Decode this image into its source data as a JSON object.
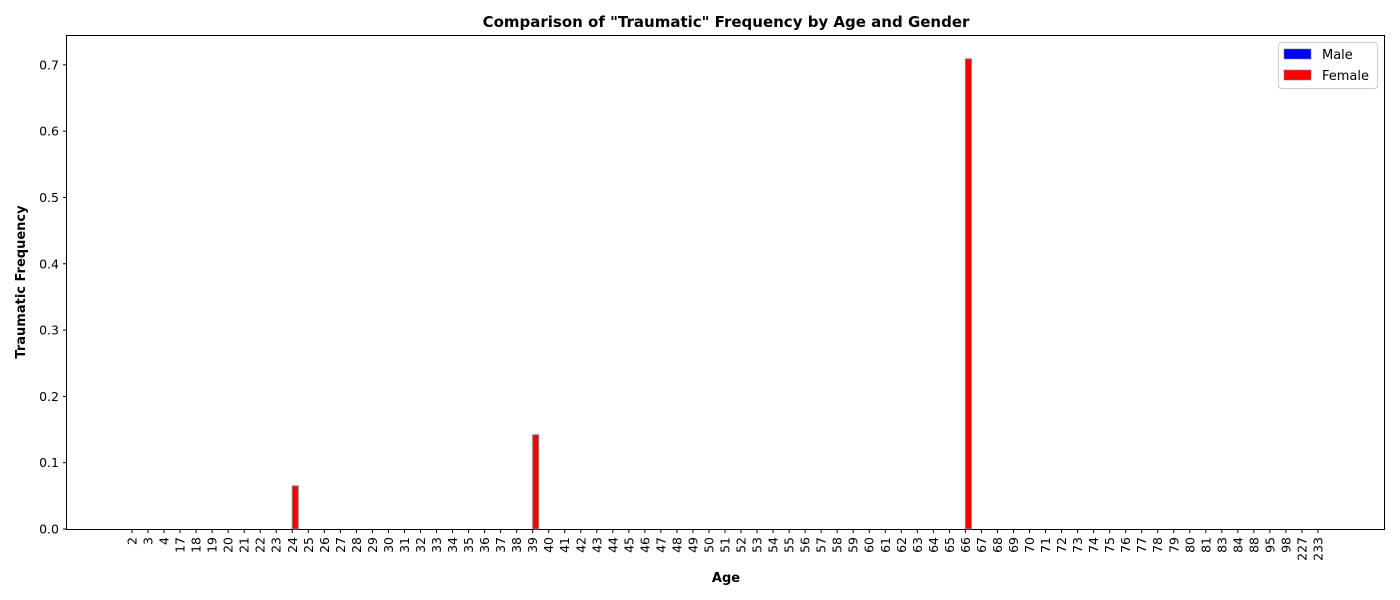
{
  "chart_data": {
    "type": "bar",
    "title": "Comparison of \"Traumatic\" Frequency by Age and Gender",
    "xlabel": "Age",
    "ylabel": "Traumatic Frequency",
    "ylim": [
      0,
      0.745
    ],
    "yticks": [
      "0.0",
      "0.1",
      "0.2",
      "0.3",
      "0.4",
      "0.5",
      "0.6",
      "0.7"
    ],
    "categories": [
      "2",
      "3",
      "4",
      "17",
      "18",
      "19",
      "20",
      "21",
      "22",
      "23",
      "24",
      "25",
      "26",
      "27",
      "28",
      "29",
      "30",
      "31",
      "32",
      "33",
      "34",
      "35",
      "36",
      "37",
      "38",
      "39",
      "40",
      "41",
      "42",
      "43",
      "44",
      "45",
      "46",
      "47",
      "48",
      "49",
      "50",
      "51",
      "52",
      "53",
      "54",
      "55",
      "56",
      "57",
      "58",
      "59",
      "60",
      "61",
      "62",
      "63",
      "64",
      "65",
      "66",
      "67",
      "68",
      "69",
      "70",
      "71",
      "72",
      "73",
      "74",
      "75",
      "76",
      "77",
      "78",
      "79",
      "80",
      "81",
      "83",
      "84",
      "88",
      "95",
      "98",
      "227",
      "233"
    ],
    "series": [
      {
        "name": "Male",
        "color": "#0000ff",
        "values": [
          0,
          0,
          0,
          0,
          0,
          0,
          0,
          0,
          0,
          0,
          0,
          0,
          0,
          0,
          0,
          0,
          0,
          0,
          0,
          0,
          0,
          0,
          0,
          0,
          0,
          0,
          0,
          0,
          0,
          0,
          0,
          0,
          0,
          0,
          0,
          0,
          0,
          0,
          0,
          0,
          0,
          0,
          0,
          0,
          0,
          0,
          0,
          0,
          0,
          0,
          0,
          0,
          0,
          0,
          0,
          0,
          0,
          0,
          0,
          0,
          0,
          0,
          0,
          0,
          0,
          0,
          0,
          0,
          0,
          0,
          0,
          0,
          0,
          0,
          0
        ]
      },
      {
        "name": "Female",
        "color": "#ff0000",
        "values": [
          0,
          0,
          0,
          0,
          0,
          0,
          0,
          0,
          0,
          0,
          0.065,
          0,
          0,
          0,
          0,
          0,
          0,
          0,
          0,
          0,
          0,
          0,
          0,
          0,
          0,
          0.142,
          0,
          0,
          0,
          0,
          0,
          0,
          0,
          0,
          0,
          0,
          0,
          0,
          0,
          0,
          0,
          0,
          0,
          0,
          0,
          0,
          0,
          0,
          0,
          0,
          0,
          0,
          0.709,
          0,
          0,
          0,
          0,
          0,
          0,
          0,
          0,
          0,
          0,
          0,
          0,
          0,
          0,
          0,
          0,
          0,
          0,
          0,
          0,
          0,
          0
        ]
      }
    ],
    "legend_position": "top-right",
    "grid": false,
    "bar_edge_color": "#808080"
  }
}
